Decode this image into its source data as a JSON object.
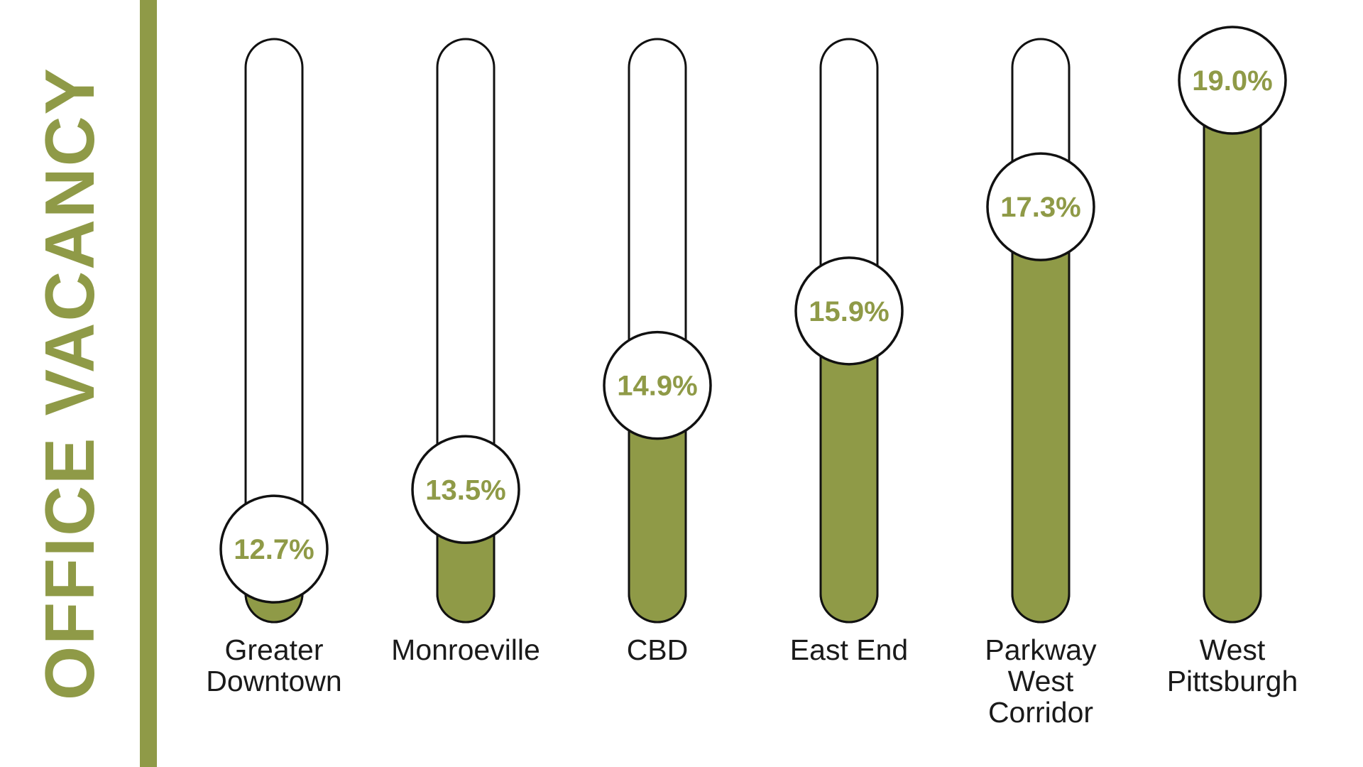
{
  "title": "OFFICE VACANCY",
  "colors": {
    "accent": "#8f9a47",
    "outline": "#111111",
    "background": "#ffffff"
  },
  "chart_data": {
    "type": "bar",
    "title": "OFFICE VACANCY",
    "categories": [
      "Greater Downtown",
      "Monroeville",
      "CBD",
      "East End",
      "Parkway West Corridor",
      "West Pittsburgh"
    ],
    "category_lines": [
      [
        "Greater",
        "Downtown"
      ],
      [
        "Monroeville"
      ],
      [
        "CBD"
      ],
      [
        "East End"
      ],
      [
        "Parkway",
        "West",
        "Corridor"
      ],
      [
        "West",
        "Pittsburgh"
      ]
    ],
    "values": [
      12.7,
      13.5,
      14.9,
      15.9,
      17.3,
      19.0
    ],
    "value_labels": [
      "12.7%",
      "13.5%",
      "14.9%",
      "15.9%",
      "17.3%",
      "19.0%"
    ],
    "unit": "%",
    "ylim": [
      12.1,
      19.0
    ],
    "grid": false,
    "legend": "none"
  }
}
